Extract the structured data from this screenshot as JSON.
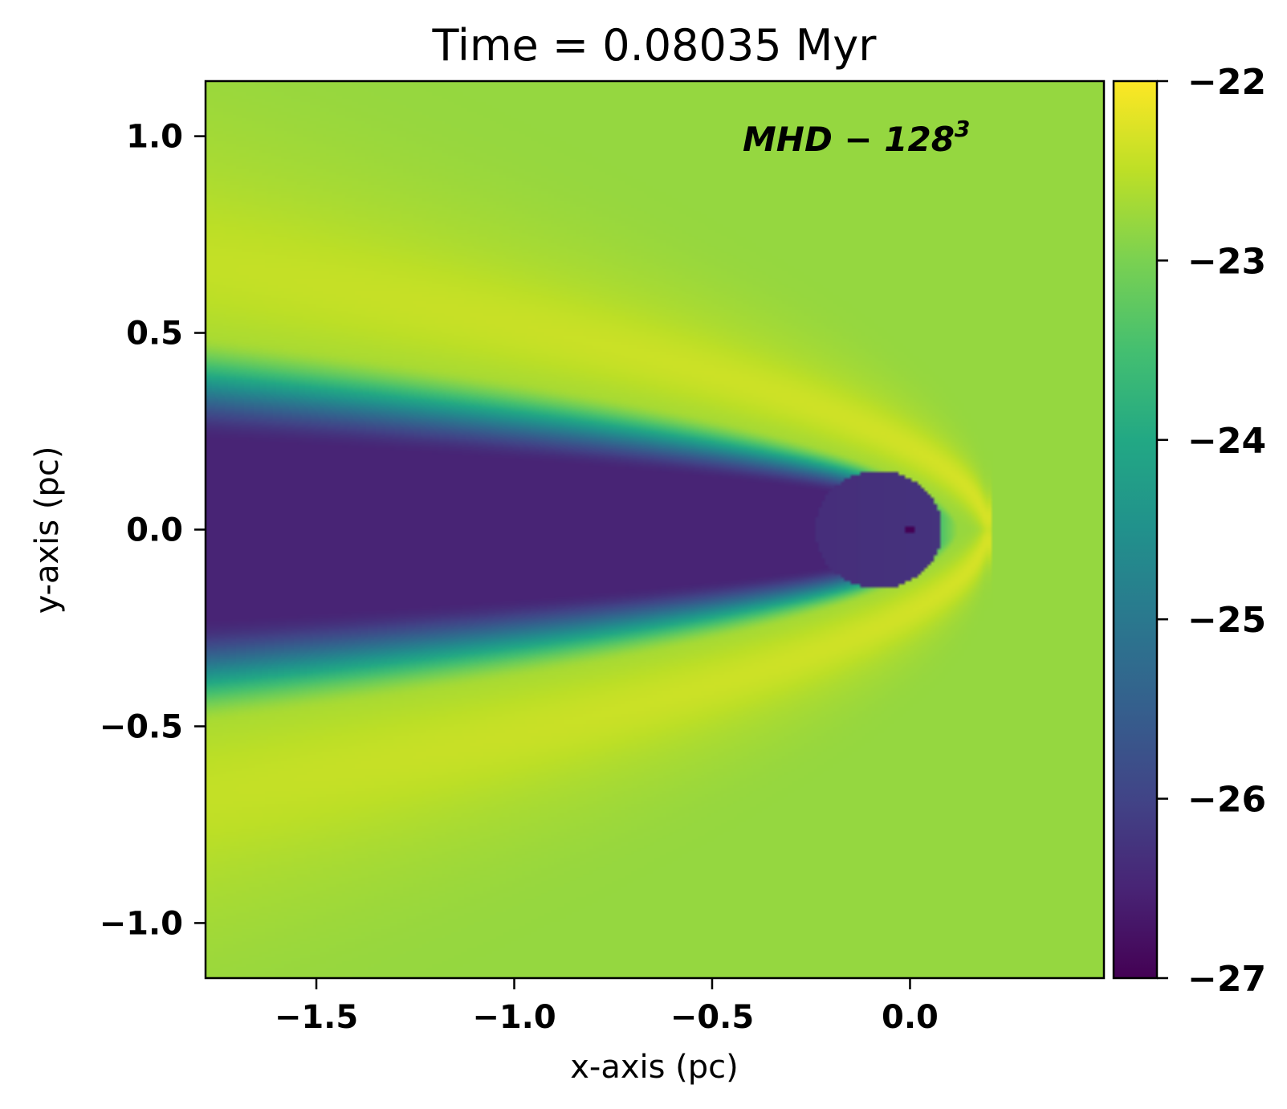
{
  "chart_data": {
    "type": "heatmap",
    "title": "Time = 0.08035 Myr",
    "xlabel": "x-axis (pc)",
    "ylabel": "y-axis (pc)",
    "xlim": [
      -1.78,
      0.49
    ],
    "ylim": [
      -1.14,
      1.14
    ],
    "x_ticks": [
      {
        "value": -1.5,
        "label": "−1.5"
      },
      {
        "value": -1.0,
        "label": "−1.0"
      },
      {
        "value": -0.5,
        "label": "−0.5"
      },
      {
        "value": 0.0,
        "label": "0.0"
      }
    ],
    "y_ticks": [
      {
        "value": 1.0,
        "label": "1.0"
      },
      {
        "value": 0.5,
        "label": "0.5"
      },
      {
        "value": 0.0,
        "label": "0.0"
      },
      {
        "value": -0.5,
        "label": "−0.5"
      },
      {
        "value": -1.0,
        "label": "−1.0"
      }
    ],
    "annotation": {
      "text": "MHD − 128",
      "superscript": "3"
    },
    "colormap": "viridis",
    "colorbar": {
      "range": [
        -27,
        -22
      ],
      "ticks": [
        {
          "value": -22,
          "label": "−22"
        },
        {
          "value": -23,
          "label": "−23"
        },
        {
          "value": -24,
          "label": "−24"
        },
        {
          "value": -25,
          "label": "−25"
        },
        {
          "value": -26,
          "label": "−26"
        },
        {
          "value": -27,
          "label": "−27"
        }
      ]
    },
    "field_features": {
      "ambient_value": -22.8,
      "bow_shock_apex_x": 0.19,
      "bow_shell_value": -22.45,
      "cavity_value": -26.5,
      "inner_bubble_value": -26.3,
      "source_position": [
        0.0,
        0.0
      ]
    }
  }
}
